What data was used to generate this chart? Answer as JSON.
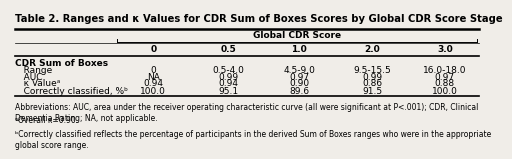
{
  "title": "Table 2. Ranges and κ Values for CDR Sum of Boxes Scores by Global CDR Score Stage",
  "header_group": "Global CDR Score",
  "col_headers": [
    "",
    "0",
    "0.5",
    "1.0",
    "2.0",
    "3.0"
  ],
  "row_labels": [
    "CDR Sum of Boxes",
    "   Range",
    "   AUC",
    "   κ Valueᵃ",
    "   Correctly classified, %ᵇ"
  ],
  "data": [
    [
      "",
      "",
      "",
      "",
      ""
    ],
    [
      "0",
      "0.5-4.0",
      "4.5-9.0",
      "9.5-15.5",
      "16.0-18.0"
    ],
    [
      "NA",
      "0.99",
      "0.97",
      "0.99",
      "0.97"
    ],
    [
      "0.94",
      "0.94",
      "0.90",
      "0.86",
      "0.88"
    ],
    [
      "100.0",
      "95.1",
      "89.6",
      "91.5",
      "100.0"
    ]
  ],
  "footnote1": "Abbreviations: AUC, area under the receiver operating characteristic curve (all were significant at P<.001); CDR, Clinical Dementia Rating; NA, not applicable.",
  "footnote2": "ᵃOverall κ=0.90.",
  "footnote3": "ᵇCorrectly classified reflects the percentage of participants in the derived Sum of Boxes ranges who were in the appropriate global score range.",
  "bg_color": "#f0ede8",
  "title_fontsize": 7.2,
  "body_fontsize": 6.5,
  "footnote_fontsize": 5.5
}
